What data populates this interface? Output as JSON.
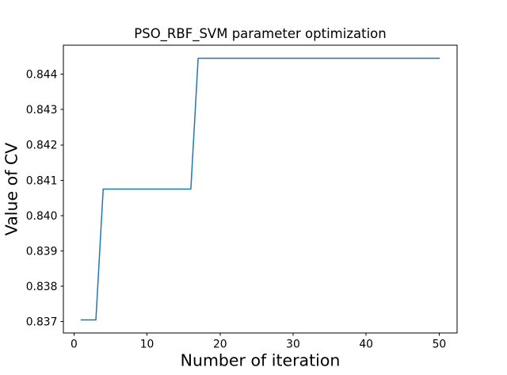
{
  "figure": {
    "background": "#ffffff"
  },
  "chart_data": {
    "type": "line",
    "title": "PSO_RBF_SVM parameter optimization",
    "xlabel": "Number of iteration",
    "ylabel": "Value of CV",
    "grid": false,
    "legend_position": "none",
    "xlim": [
      -1.45,
      52.45
    ],
    "ylim": [
      0.83668,
      0.84482
    ],
    "x_ticks": [
      0,
      10,
      20,
      30,
      40,
      50
    ],
    "x_tick_labels": [
      "0",
      "10",
      "20",
      "30",
      "40",
      "50"
    ],
    "y_ticks": [
      0.837,
      0.838,
      0.839,
      0.84,
      0.841,
      0.842,
      0.843,
      0.844
    ],
    "y_tick_labels": [
      "0.837",
      "0.838",
      "0.839",
      "0.840",
      "0.841",
      "0.842",
      "0.843",
      "0.844"
    ],
    "line_color": "#1f77b4",
    "line_width": 1.5,
    "spine_color": "#000000",
    "text_color": "#000000",
    "series": [
      {
        "x": [
          1,
          2,
          3,
          4,
          5,
          6,
          7,
          8,
          9,
          10,
          11,
          12,
          13,
          14,
          15,
          16,
          17,
          18,
          19,
          20,
          21,
          22,
          23,
          24,
          25,
          26,
          27,
          28,
          29,
          30,
          31,
          32,
          33,
          34,
          35,
          36,
          37,
          38,
          39,
          40,
          41,
          42,
          43,
          44,
          45,
          46,
          47,
          48,
          49,
          50
        ],
        "y": [
          0.83705,
          0.83705,
          0.83705,
          0.84075,
          0.84075,
          0.84075,
          0.84075,
          0.84075,
          0.84075,
          0.84075,
          0.84075,
          0.84075,
          0.84075,
          0.84075,
          0.84075,
          0.84075,
          0.84445,
          0.84445,
          0.84445,
          0.84445,
          0.84445,
          0.84445,
          0.84445,
          0.84445,
          0.84445,
          0.84445,
          0.84445,
          0.84445,
          0.84445,
          0.84445,
          0.84445,
          0.84445,
          0.84445,
          0.84445,
          0.84445,
          0.84445,
          0.84445,
          0.84445,
          0.84445,
          0.84445,
          0.84445,
          0.84445,
          0.84445,
          0.84445,
          0.84445,
          0.84445,
          0.84445,
          0.84445,
          0.84445,
          0.84445
        ]
      }
    ]
  }
}
